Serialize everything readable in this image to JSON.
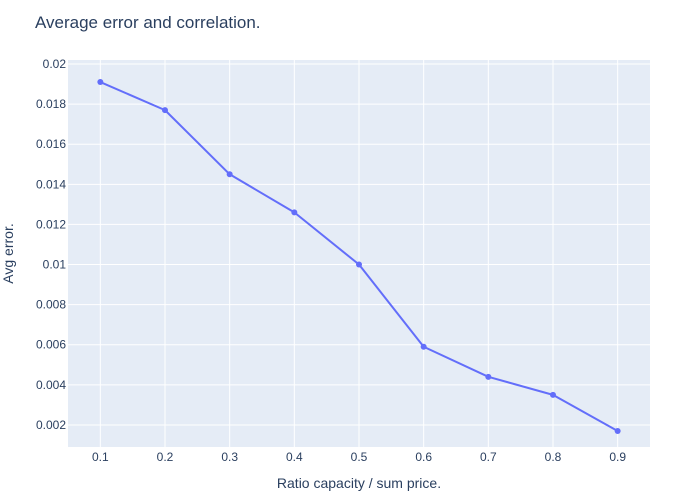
{
  "chart_data": {
    "type": "line",
    "title": "Average error and correlation.",
    "xlabel": "Ratio capacity / sum price.",
    "ylabel": "Avg error.",
    "x": [
      0.1,
      0.2,
      0.3,
      0.4,
      0.5,
      0.6,
      0.7,
      0.8,
      0.9
    ],
    "series": [
      {
        "values": [
          0.0191,
          0.0177,
          0.0145,
          0.0126,
          0.01,
          0.0059,
          0.0044,
          0.0035,
          0.0017
        ]
      }
    ],
    "xlim": [
      0.05,
      0.95
    ],
    "ylim": [
      0.0009,
      0.0202
    ],
    "xticks": [
      "0.1",
      "0.2",
      "0.3",
      "0.4",
      "0.5",
      "0.6",
      "0.7",
      "0.8",
      "0.9"
    ],
    "yticks": [
      "0.002",
      "0.004",
      "0.006",
      "0.008",
      "0.01",
      "0.012",
      "0.014",
      "0.016",
      "0.018",
      "0.02"
    ],
    "grid": true,
    "colors": {
      "line": "#636efa",
      "plot_bg": "#e5ecf6",
      "grid": "#ffffff",
      "text": "#2a3f5f"
    }
  }
}
